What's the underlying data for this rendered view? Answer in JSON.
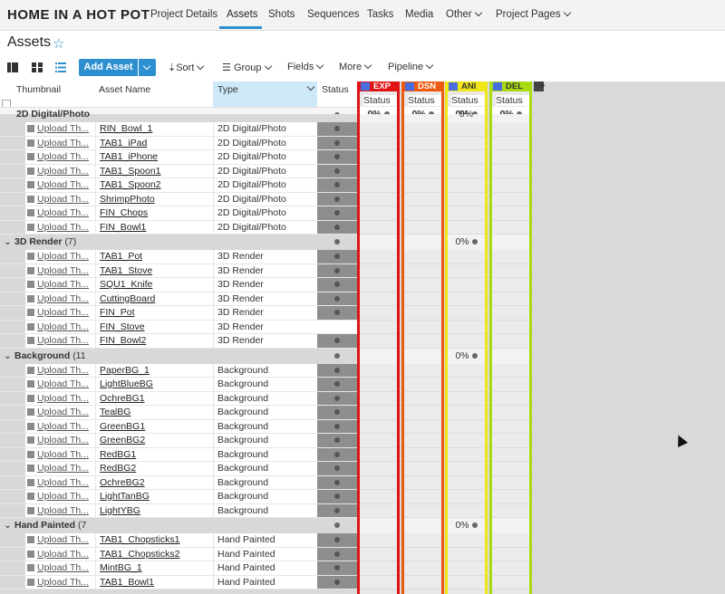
{
  "nav": {
    "brand": "HOME IN A HOT POT",
    "items": [
      {
        "label": "Project Details",
        "x": 0
      },
      {
        "label": "Assets"
      },
      {
        "label": "Shots"
      },
      {
        "label": "Sequences"
      },
      {
        "label": "Tasks"
      },
      {
        "label": "Media"
      },
      {
        "label": "Other"
      },
      {
        "label": "Project Pages"
      }
    ]
  },
  "page": {
    "title": "Assets"
  },
  "toolbar": {
    "add_label": "Add Asset",
    "sort_label": "Sort",
    "group_label": "Group",
    "fields_label": "Fields",
    "more_label": "More",
    "pipeline_label": "Pipeline"
  },
  "columns": {
    "thumbnail": "Thumbnail",
    "asset_name": "Asset Name",
    "type": "Type",
    "status": "Status"
  },
  "stages": [
    {
      "code": "EXP",
      "color": "#e01414",
      "sub": "Status",
      "pct": "0%"
    },
    {
      "code": "DSN",
      "color": "#ec5a10",
      "sub": "Status",
      "pct": "0%"
    },
    {
      "code": "ANI",
      "color": "#f0e618",
      "sub": "Status",
      "pct": "0%"
    },
    {
      "code": "DEL",
      "color": "#a8dc10",
      "sub": "Status",
      "pct": "0%"
    }
  ],
  "upload_label": "Upload Th...",
  "partial_group_label": "2D Digital/Photo",
  "partial_group_pct": "0%",
  "groups": [
    {
      "label": "2D Digital/Photo",
      "partial": true,
      "rows": [
        {
          "name": "RIN_Bowl_1",
          "type": "2D Digital/Photo"
        },
        {
          "name": "TAB1_iPad",
          "type": "2D Digital/Photo"
        },
        {
          "name": "TAB1_iPhone",
          "type": "2D Digital/Photo"
        },
        {
          "name": "TAB1_Spoon1",
          "type": "2D Digital/Photo"
        },
        {
          "name": "TAB1_Spoon2",
          "type": "2D Digital/Photo"
        },
        {
          "name": "ShrimpPhoto",
          "type": "2D Digital/Photo"
        },
        {
          "name": "FIN_Chops",
          "type": "2D Digital/Photo"
        },
        {
          "name": "FIN_Bowl1",
          "type": "2D Digital/Photo"
        }
      ]
    },
    {
      "label": "3D Render",
      "count": "(7)",
      "pct": "0%",
      "rows": [
        {
          "name": "TAB1_Pot",
          "type": "3D Render"
        },
        {
          "name": "TAB1_Stove",
          "type": "3D Render"
        },
        {
          "name": "SQU1_Knife",
          "type": "3D Render"
        },
        {
          "name": "CuttingBoard",
          "type": "3D Render"
        },
        {
          "name": "FIN_Pot",
          "type": "3D Render"
        },
        {
          "name": "FIN_Stove",
          "type": "3D Render",
          "nostatus": true
        },
        {
          "name": "FIN_Bowl2",
          "type": "3D Render"
        }
      ]
    },
    {
      "label": "Background",
      "count": "(11",
      "pct": "0%",
      "rows": [
        {
          "name": "PaperBG_1",
          "type": "Background"
        },
        {
          "name": "LightBlueBG",
          "type": "Background"
        },
        {
          "name": "OchreBG1",
          "type": "Background"
        },
        {
          "name": "TealBG",
          "type": "Background"
        },
        {
          "name": "GreenBG1",
          "type": "Background"
        },
        {
          "name": "GreenBG2",
          "type": "Background"
        },
        {
          "name": "RedBG1",
          "type": "Background"
        },
        {
          "name": "RedBG2",
          "type": "Background"
        },
        {
          "name": "OchreBG2",
          "type": "Background"
        },
        {
          "name": "LightTanBG",
          "type": "Background"
        },
        {
          "name": "LightYBG",
          "type": "Background"
        }
      ]
    },
    {
      "label": "Hand Painted",
      "count": "(7",
      "pct": "0%",
      "rows": [
        {
          "name": "TAB1_Chopsticks1",
          "type": "Hand Painted"
        },
        {
          "name": "TAB1_Chopsticks2",
          "type": "Hand Painted"
        },
        {
          "name": "MintBG_1",
          "type": "Hand Painted"
        },
        {
          "name": "TAB1_Bowl1",
          "type": "Hand Painted"
        }
      ]
    }
  ]
}
